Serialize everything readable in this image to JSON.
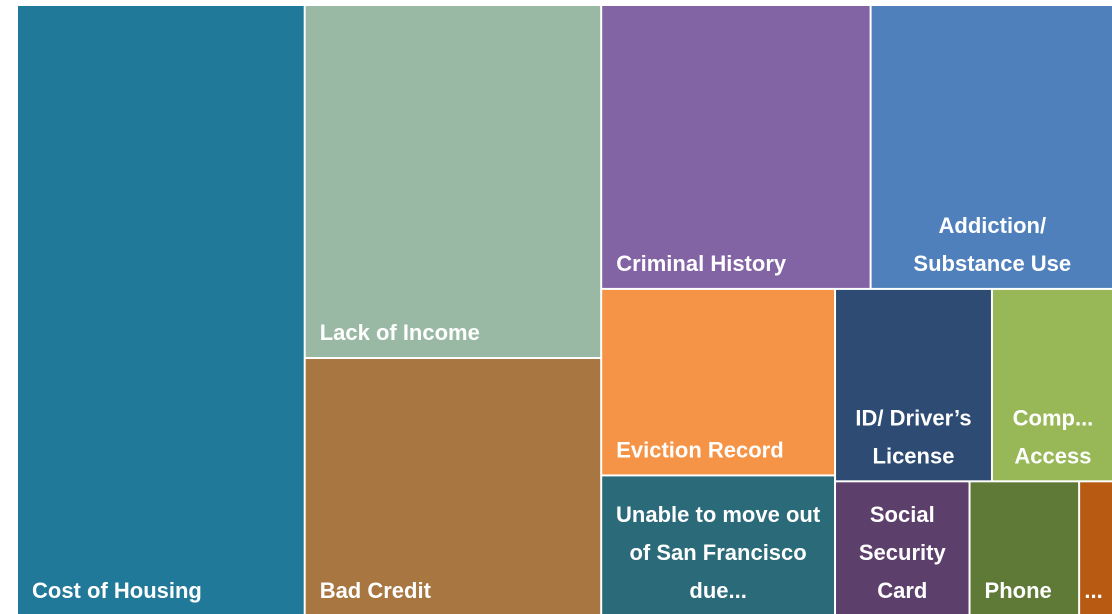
{
  "chart_data": {
    "type": "treemap",
    "categories": [
      "Cost of Housing",
      "Lack of Income",
      "Bad Credit",
      "Criminal History",
      "Addiction/ Substance Use",
      "Eviction Record",
      "Unable to move out of San Francisco due...",
      "ID/ Driver’s License",
      "Comp... Access",
      "Social Security Card",
      "Phone",
      "..."
    ],
    "values": [
      26.2,
      15.6,
      11.4,
      11.4,
      10.3,
      6.5,
      4.9,
      4.5,
      3.5,
      2.7,
      2.2,
      0.7
    ],
    "colors": [
      "#21799a",
      "#9ab9a4",
      "#a87640",
      "#8264a4",
      "#4f80bc",
      "#f59446",
      "#2b6a78",
      "#2d4b73",
      "#98b858",
      "#5c3f6b",
      "#5f7a36",
      "#b85a12"
    ]
  }
}
